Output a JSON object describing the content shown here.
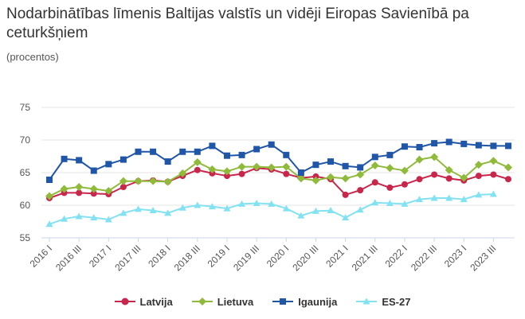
{
  "title": "Nodarbinātības līmenis Baltijas valstīs un vidēji Eiropas Savienībā pa ceturkšņiem",
  "subtitle": "(procentos)",
  "chart_data": {
    "type": "line",
    "title": "Nodarbinātības līmenis Baltijas valstīs un vidēji Eiropas Savienībā pa ceturkšņiem",
    "ylabel": "(procentos)",
    "ylim": [
      55,
      75
    ],
    "yticks": [
      55,
      60,
      65,
      70,
      75
    ],
    "grid": true,
    "legend_position": "bottom",
    "x": [
      "2016 I",
      "2016 II",
      "2016 III",
      "2016 IV",
      "2017 I",
      "2017 II",
      "2017 III",
      "2017 IV",
      "2018 I",
      "2018 II",
      "2018 III",
      "2018 IV",
      "2019 I",
      "2019 II",
      "2019 III",
      "2019 IV",
      "2020 I",
      "2020 II",
      "2020 III",
      "2020 IV",
      "2021 I",
      "2021 II",
      "2021 III",
      "2021 IV",
      "2022 I",
      "2022 II",
      "2022 III",
      "2022 IV",
      "2023 I",
      "2023 II",
      "2023 III",
      "2023 IV"
    ],
    "xtick_labels": [
      "2016 I",
      "2016 III",
      "2017 I",
      "2017 III",
      "2018 I",
      "2018 III",
      "2019 I",
      "2019 III",
      "2020 I",
      "2020 III",
      "2021 I",
      "2021 III",
      "2022 I",
      "2022 III",
      "2023 I",
      "2023 III"
    ],
    "series": [
      {
        "name": "Latvija",
        "color": "#c8264b",
        "marker": "circle",
        "values": [
          61.1,
          61.9,
          61.9,
          61.8,
          61.7,
          62.8,
          63.7,
          63.8,
          63.6,
          64.5,
          65.4,
          64.9,
          64.5,
          64.8,
          65.7,
          65.5,
          64.8,
          64.2,
          64.4,
          64.0,
          61.6,
          62.3,
          63.5,
          62.7,
          63.2,
          64.0,
          64.7,
          64.1,
          63.8,
          64.5,
          64.7,
          64.0
        ]
      },
      {
        "name": "Lietuva",
        "color": "#8fba3a",
        "marker": "diamond",
        "values": [
          61.4,
          62.5,
          62.8,
          62.5,
          62.2,
          63.7,
          63.7,
          63.7,
          63.6,
          64.9,
          66.6,
          65.5,
          65.2,
          65.9,
          65.9,
          65.8,
          65.9,
          64.1,
          63.8,
          64.3,
          64.1,
          64.7,
          66.1,
          65.7,
          65.3,
          67.0,
          67.4,
          65.4,
          64.2,
          66.2,
          66.8,
          65.8
        ]
      },
      {
        "name": "Igaunija",
        "color": "#1f56a8",
        "marker": "square",
        "values": [
          63.9,
          67.1,
          66.9,
          65.3,
          66.3,
          67.0,
          68.2,
          68.2,
          66.7,
          68.2,
          68.2,
          69.1,
          67.6,
          67.7,
          68.6,
          69.3,
          67.7,
          65.0,
          66.2,
          66.7,
          66.0,
          65.8,
          67.4,
          67.7,
          69.0,
          68.9,
          69.5,
          69.7,
          69.4,
          69.2,
          69.1,
          69.1
        ]
      },
      {
        "name": "ES-27",
        "color": "#82e2f2",
        "marker": "triangle",
        "values": [
          57.1,
          57.9,
          58.3,
          58.1,
          57.8,
          58.8,
          59.4,
          59.2,
          58.8,
          59.6,
          60.0,
          59.8,
          59.5,
          60.2,
          60.3,
          60.2,
          59.5,
          58.4,
          59.1,
          59.2,
          58.1,
          59.3,
          60.4,
          60.3,
          60.2,
          60.9,
          61.1,
          61.1,
          60.9,
          61.6,
          61.7,
          null
        ]
      }
    ]
  }
}
